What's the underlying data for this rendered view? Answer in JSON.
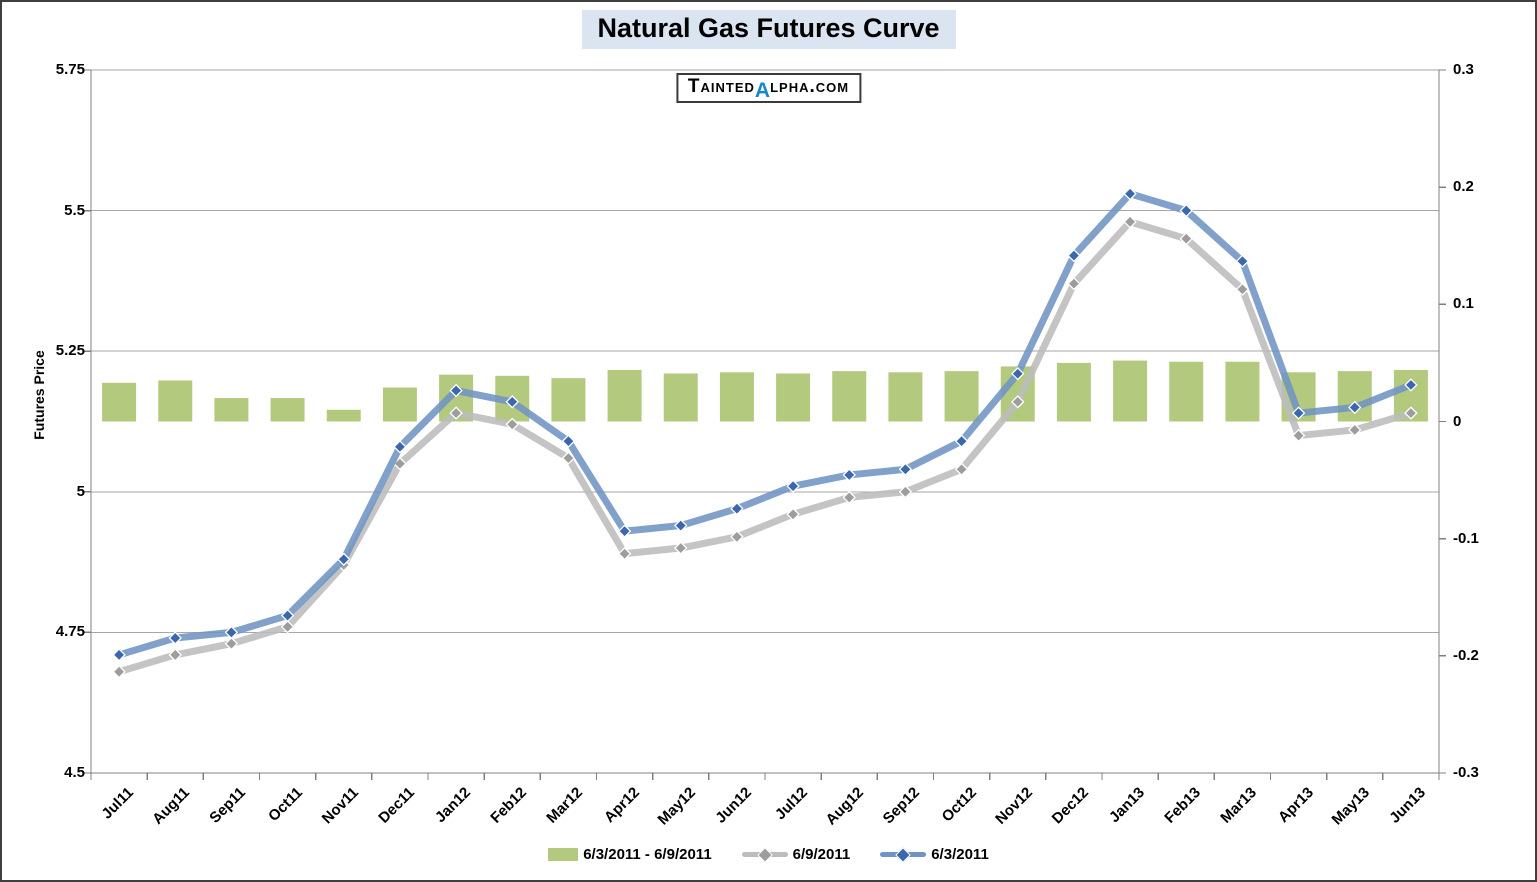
{
  "title": "Natural Gas Futures Curve",
  "logo": {
    "text_before_alpha": "Tainted",
    "alpha": "α",
    "text_after_alpha": "lpha.com"
  },
  "axes": {
    "left_label": "Futures Price",
    "left_tick_labels": [
      "5.75",
      "5.5",
      "5.25",
      "5",
      "4.75",
      "4.5"
    ],
    "left_tick_values": [
      5.75,
      5.5,
      5.25,
      5.0,
      4.75,
      4.5
    ],
    "left_min": 4.5,
    "left_max": 5.75,
    "right_tick_labels": [
      "0.3",
      "0.2",
      "0.1",
      "0",
      "-0.1",
      "-0.2",
      "-0.3"
    ],
    "right_tick_values": [
      0.3,
      0.2,
      0.1,
      0,
      -0.1,
      -0.2,
      -0.3
    ],
    "right_min": -0.3,
    "right_max": 0.3
  },
  "chart_data": {
    "type": "combo (bar + line, dual axis)",
    "title": "Natural Gas Futures Curve",
    "ylabel": "Futures Price",
    "left_axis_range": [
      4.5,
      5.75
    ],
    "right_axis_range": [
      -0.3,
      0.3
    ],
    "grid": true,
    "legend_position": "bottom",
    "categories": [
      "Jul11",
      "Aug11",
      "Sep11",
      "Oct11",
      "Nov11",
      "Dec11",
      "Jan12",
      "Feb12",
      "Mar12",
      "Apr12",
      "May12",
      "Jun12",
      "Jul12",
      "Aug12",
      "Sep12",
      "Oct12",
      "Nov12",
      "Dec12",
      "Jan13",
      "Feb13",
      "Mar13",
      "Apr13",
      "May13",
      "Jun13"
    ],
    "series": [
      {
        "name": "6/3/2011 - 6/9/2011",
        "type": "bar",
        "axis": "right",
        "color": "#b3ca7e",
        "values": [
          0.033,
          0.035,
          0.02,
          0.02,
          0.01,
          0.029,
          0.04,
          0.039,
          0.037,
          0.044,
          0.041,
          0.042,
          0.041,
          0.043,
          0.042,
          0.043,
          0.047,
          0.05,
          0.052,
          0.051,
          0.051,
          0.042,
          0.043,
          0.044
        ]
      },
      {
        "name": "6/9/2011",
        "type": "line",
        "axis": "left",
        "color": "#bcbcbc",
        "marker_color": "#9d9d9d",
        "values": [
          4.68,
          4.71,
          4.73,
          4.76,
          4.87,
          5.05,
          5.14,
          5.12,
          5.06,
          4.89,
          4.9,
          4.92,
          4.96,
          4.99,
          5.0,
          5.04,
          5.16,
          5.37,
          5.48,
          5.45,
          5.36,
          5.1,
          5.11,
          5.14
        ]
      },
      {
        "name": "6/3/2011",
        "type": "line",
        "axis": "left",
        "color": "#6f94c4",
        "marker_color": "#3a67ad",
        "values": [
          4.71,
          4.74,
          4.75,
          4.78,
          4.88,
          5.08,
          5.18,
          5.16,
          5.09,
          4.93,
          4.94,
          4.97,
          5.01,
          5.03,
          5.04,
          5.09,
          5.21,
          5.42,
          5.53,
          5.5,
          5.41,
          5.14,
          5.15,
          5.19
        ]
      }
    ]
  },
  "legend": {
    "items": [
      {
        "label": "6/3/2011 - 6/9/2011",
        "swatch": "bar"
      },
      {
        "label": "6/9/2011",
        "swatch": "line-diamond"
      },
      {
        "label": "6/3/2011",
        "swatch": "line-diamond"
      }
    ]
  },
  "colors": {
    "bar_fill": "#b3ca7e",
    "line_6_9": "#bcbcbc",
    "marker_6_9": "#9d9d9d",
    "line_6_3": "#6f94c4",
    "marker_6_3": "#3a67ad",
    "gridline": "#a6a6a6",
    "axis": "#808080",
    "title_highlight": "#dbe5f1",
    "logo_alpha_blue": "#1488cd"
  }
}
